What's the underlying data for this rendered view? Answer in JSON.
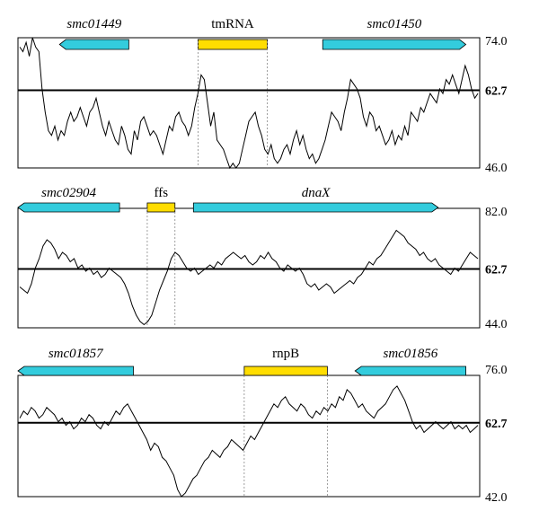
{
  "chart_data": [
    {
      "type": "line",
      "ylim": [
        46.0,
        74.0
      ],
      "ytick_top": "74.0",
      "ytick_bottom": "46.0",
      "reference_line": {
        "value": 62.7,
        "label": "62.7"
      },
      "genes": [
        {
          "name": "smc01449",
          "kind": "coding",
          "color": "#33ccdd",
          "italic": true,
          "strand": "-",
          "x_start": 0.09,
          "x_end": 0.24
        },
        {
          "name": "tmRNA",
          "kind": "rna",
          "color": "#ffdd00",
          "italic": false,
          "strand": "none",
          "x_start": 0.39,
          "x_end": 0.54
        },
        {
          "name": "smc01450",
          "kind": "coding",
          "color": "#33ccdd",
          "italic": true,
          "strand": "+",
          "x_start": 0.66,
          "x_end": 0.97
        }
      ],
      "guides_x": [
        0.39,
        0.54
      ],
      "series": [
        {
          "values": [
            72,
            71,
            73,
            70,
            74,
            72,
            71,
            63,
            58,
            54,
            53,
            55,
            52,
            54,
            53,
            56,
            58,
            56,
            57,
            59,
            57,
            55,
            58,
            59,
            61,
            58,
            55,
            53,
            56,
            54,
            52,
            51,
            55,
            53,
            50,
            49,
            54,
            52,
            56,
            57,
            55,
            53,
            54,
            53,
            51,
            49,
            52,
            55,
            54,
            57,
            58,
            56,
            55,
            53,
            55,
            59,
            62,
            66,
            65,
            60,
            55,
            58,
            52,
            51,
            50,
            48,
            46,
            47,
            46,
            47,
            50,
            53,
            56,
            57,
            58,
            55,
            53,
            50,
            49,
            51,
            48,
            47,
            48,
            50,
            51,
            49,
            52,
            54,
            51,
            53,
            50,
            48,
            49,
            47,
            48,
            50,
            52,
            55,
            58,
            57,
            56,
            54,
            58,
            61,
            65,
            64,
            63,
            61,
            57,
            55,
            58,
            57,
            54,
            55,
            53,
            51,
            52,
            54,
            51,
            53,
            52,
            55,
            53,
            58,
            57,
            56,
            59,
            58,
            60,
            62,
            61,
            60,
            63,
            62,
            65,
            64,
            66,
            64,
            62,
            65,
            68,
            66,
            63,
            61,
            62
          ]
        }
      ]
    },
    {
      "type": "line",
      "ylim": [
        44.0,
        82.0
      ],
      "ytick_top": "82.0",
      "ytick_bottom": "44.0",
      "reference_line": {
        "value": 62.7,
        "label": "62.7"
      },
      "genes": [
        {
          "name": "smc02904",
          "kind": "coding",
          "color": "#33ccdd",
          "italic": true,
          "strand": "-",
          "x_start": 0.0,
          "x_end": 0.22
        },
        {
          "name": "ffs",
          "kind": "rna",
          "color": "#ffdd00",
          "italic": false,
          "strand": "none",
          "x_start": 0.28,
          "x_end": 0.34
        },
        {
          "name": "dnaX",
          "kind": "coding",
          "color": "#33ccdd",
          "italic": true,
          "strand": "+",
          "x_start": 0.38,
          "x_end": 0.91
        }
      ],
      "guides_x": [
        0.28,
        0.34
      ],
      "series": [
        {
          "values": [
            57,
            56,
            55,
            58,
            63,
            66,
            70,
            72,
            71,
            69,
            66,
            68,
            67,
            65,
            66,
            63,
            64,
            62,
            63,
            61,
            62,
            60,
            61,
            63,
            62,
            61,
            60,
            58,
            55,
            51,
            48,
            46,
            45,
            46,
            48,
            52,
            56,
            59,
            62,
            66,
            68,
            67,
            65,
            63,
            62,
            63,
            61,
            62,
            63,
            64,
            63,
            65,
            64,
            66,
            67,
            68,
            67,
            66,
            67,
            65,
            64,
            65,
            67,
            66,
            68,
            66,
            65,
            63,
            62,
            64,
            63,
            62,
            63,
            61,
            58,
            57,
            58,
            56,
            57,
            58,
            57,
            55,
            56,
            57,
            58,
            59,
            58,
            60,
            61,
            63,
            65,
            64,
            66,
            67,
            69,
            71,
            73,
            75,
            74,
            73,
            71,
            70,
            69,
            67,
            68,
            66,
            65,
            66,
            64,
            63,
            62,
            61,
            63,
            62,
            64,
            66,
            68,
            67,
            66
          ]
        }
      ]
    },
    {
      "type": "line",
      "ylim": [
        42.0,
        76.0
      ],
      "ytick_top": "76.0",
      "ytick_bottom": "42.0",
      "reference_line": {
        "value": 62.7,
        "label": "62.7"
      },
      "genes": [
        {
          "name": "smc01857",
          "kind": "coding",
          "color": "#33ccdd",
          "italic": true,
          "strand": "-",
          "x_start": 0.0,
          "x_end": 0.25
        },
        {
          "name": "rnpB",
          "kind": "rna",
          "color": "#ffdd00",
          "italic": false,
          "strand": "none",
          "x_start": 0.49,
          "x_end": 0.67
        },
        {
          "name": "smc01856",
          "kind": "coding",
          "color": "#33ccdd",
          "italic": true,
          "strand": "-",
          "x_start": 0.73,
          "x_end": 0.97
        }
      ],
      "guides_x": [
        0.49,
        0.67
      ],
      "series": [
        {
          "values": [
            64,
            66,
            65,
            67,
            66,
            64,
            65,
            67,
            66,
            65,
            63,
            64,
            62,
            63,
            61,
            62,
            64,
            63,
            65,
            64,
            62,
            61,
            63,
            62,
            64,
            66,
            65,
            67,
            68,
            66,
            64,
            62,
            60,
            58,
            55,
            57,
            56,
            53,
            52,
            50,
            48,
            44,
            42,
            43,
            45,
            47,
            48,
            50,
            52,
            53,
            55,
            54,
            53,
            55,
            56,
            58,
            57,
            56,
            55,
            57,
            59,
            58,
            60,
            62,
            64,
            66,
            68,
            67,
            69,
            70,
            68,
            67,
            66,
            68,
            67,
            65,
            64,
            66,
            65,
            67,
            66,
            68,
            67,
            70,
            69,
            72,
            71,
            69,
            67,
            68,
            66,
            65,
            64,
            66,
            67,
            68,
            70,
            72,
            73,
            71,
            69,
            66,
            63,
            61,
            62,
            60,
            61,
            62,
            63,
            62,
            61,
            62,
            63,
            61,
            62,
            61,
            62,
            60,
            61,
            62
          ]
        }
      ]
    }
  ]
}
